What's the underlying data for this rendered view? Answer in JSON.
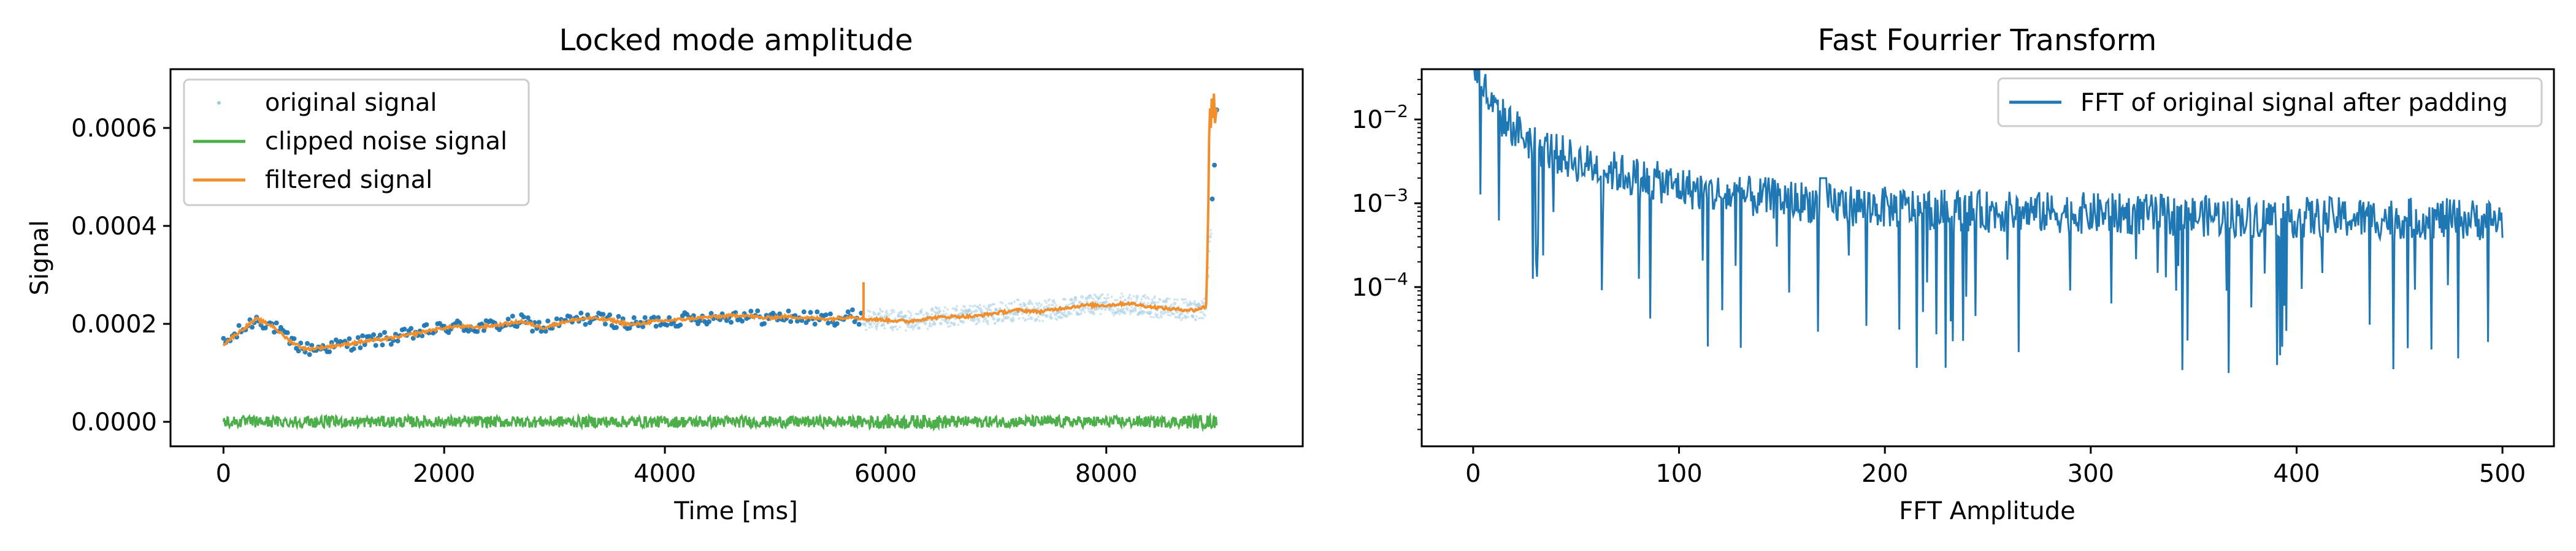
{
  "chart_data": [
    {
      "type": "scatter+line",
      "title": "Locked mode amplitude",
      "xlabel": "Time [ms]",
      "ylabel": "Signal",
      "xlim": [
        -480,
        9780
      ],
      "ylim": [
        -5e-05,
        0.00072
      ],
      "xticks": [
        0,
        2000,
        4000,
        6000,
        8000
      ],
      "xtick_labels": [
        "0",
        "2000",
        "4000",
        "6000",
        "8000"
      ],
      "yticks": [
        0.0,
        0.0002,
        0.0004,
        0.0006
      ],
      "ytick_labels": [
        "0.0000",
        "0.0002",
        "0.0004",
        "0.0006"
      ],
      "legend": {
        "position": "top-left",
        "entries": [
          {
            "label": "original signal",
            "color": "#9ecae1",
            "marker": "dot"
          },
          {
            "label": "clipped noise signal",
            "color": "#4daf4a",
            "marker": "line"
          },
          {
            "label": "filtered signal",
            "color": "#ff7f0e",
            "marker": "line"
          }
        ]
      },
      "series": [
        {
          "name": "filtered signal",
          "color": "#f28e2b",
          "x": [
            0,
            150,
            300,
            450,
            600,
            750,
            900,
            1100,
            1300,
            1500,
            1700,
            1900,
            2100,
            2300,
            2500,
            2700,
            2900,
            3100,
            3300,
            3500,
            3700,
            3900,
            4100,
            4300,
            4500,
            4700,
            4900,
            5100,
            5300,
            5500,
            5700,
            5800,
            6000,
            6200,
            6400,
            6600,
            6800,
            7000,
            7200,
            7400,
            7600,
            7800,
            8000,
            8200,
            8400,
            8600,
            8800,
            8900,
            8950,
            9000
          ],
          "y": [
            0.000158,
            0.000185,
            0.00021,
            0.000195,
            0.000165,
            0.000148,
            0.000152,
            0.000158,
            0.000165,
            0.00017,
            0.000178,
            0.000188,
            0.000195,
            0.000193,
            0.000198,
            0.000205,
            0.000192,
            0.000205,
            0.000212,
            0.000208,
            0.000198,
            0.000205,
            0.000208,
            0.000212,
            0.000215,
            0.000218,
            0.000212,
            0.000215,
            0.000212,
            0.00021,
            0.000215,
            0.00021,
            0.000208,
            0.000205,
            0.000212,
            0.000215,
            0.000215,
            0.000222,
            0.000228,
            0.000225,
            0.000232,
            0.000238,
            0.000238,
            0.000242,
            0.000235,
            0.00023,
            0.000228,
            0.000235,
            0.0004,
            0.00063
          ]
        },
        {
          "name": "clipped noise signal",
          "color": "#4daf4a",
          "x_range": [
            0,
            9000
          ],
          "level": 0.0,
          "amplitude": 1.2e-05
        }
      ]
    },
    {
      "type": "line",
      "title": "Fast Fourrier Transform",
      "xlabel": "FFT Amplitude",
      "ylabel": "",
      "yscale": "log",
      "xlim": [
        -25,
        525
      ],
      "ylim_log10": [
        -5.9,
        -1.4
      ],
      "xticks": [
        0,
        100,
        200,
        300,
        400,
        500
      ],
      "xtick_labels": [
        "0",
        "100",
        "200",
        "300",
        "400",
        "500"
      ],
      "yticks_log10": [
        -4,
        -3,
        -2
      ],
      "legend": {
        "position": "top-right",
        "entries": [
          {
            "label": "FFT of original signal after padding",
            "color": "#1f77b4",
            "marker": "line"
          }
        ]
      },
      "series": [
        {
          "name": "FFT of original signal after padding",
          "color": "#1f77b4",
          "x": [
            0,
            5,
            10,
            20,
            30,
            50,
            80,
            100,
            120,
            150,
            170,
            200,
            250,
            300,
            350,
            400,
            450,
            500
          ],
          "y_log10": [
            -1.3,
            -1.6,
            -1.9,
            -2.1,
            -2.3,
            -2.5,
            -2.7,
            -2.8,
            -2.9,
            -2.95,
            -3.0,
            -3.05,
            -3.1,
            -3.12,
            -3.15,
            -3.17,
            -3.18,
            -3.2
          ]
        }
      ]
    }
  ]
}
